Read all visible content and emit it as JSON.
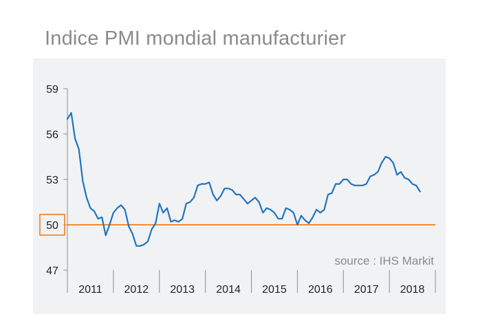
{
  "chart_data": {
    "type": "line",
    "title": "Indice PMI mondial manufacturier",
    "source": "source : IHS Markit",
    "xlabel": "",
    "ylabel": "",
    "ylim": [
      47,
      59
    ],
    "yticks": [
      {
        "value": 59,
        "label": "59"
      },
      {
        "value": 56,
        "label": "56"
      },
      {
        "value": 53,
        "label": "53"
      },
      {
        "value": 50,
        "label": "50"
      },
      {
        "value": 47,
        "label": "47"
      }
    ],
    "highlight_tick": "50",
    "reference_line": {
      "value": 50,
      "color": "#ee7d1f"
    },
    "years": [
      "2011",
      "2012",
      "2013",
      "2014",
      "2015",
      "2016",
      "2017",
      "2018"
    ],
    "x_start": 2011.0,
    "x_end": 2019.0,
    "series": [
      {
        "name": "Indice PMI mondial manufacturier",
        "color": "#1f74bd",
        "start": "2011-01",
        "values": [
          57.0,
          57.4,
          55.7,
          55.0,
          52.9,
          51.8,
          51.1,
          50.9,
          50.4,
          50.5,
          49.3,
          50.0,
          50.8,
          51.1,
          51.3,
          51.0,
          49.9,
          49.4,
          48.6,
          48.6,
          48.7,
          48.9,
          49.7,
          50.1,
          51.4,
          50.8,
          51.1,
          50.2,
          50.3,
          50.2,
          50.4,
          51.4,
          51.5,
          51.8,
          52.6,
          52.7,
          52.7,
          52.8,
          52.0,
          51.6,
          51.9,
          52.4,
          52.4,
          52.3,
          52.0,
          52.0,
          51.7,
          51.4,
          51.6,
          51.8,
          51.5,
          50.8,
          51.1,
          51.0,
          50.8,
          50.4,
          50.4,
          51.1,
          51.0,
          50.8,
          50.0,
          50.6,
          50.3,
          50.1,
          50.5,
          51.0,
          50.8,
          51.0,
          52.0,
          52.1,
          52.7,
          52.7,
          53.0,
          53.0,
          52.7,
          52.6,
          52.6,
          52.6,
          52.7,
          53.2,
          53.3,
          53.5,
          54.1,
          54.5,
          54.4,
          54.1,
          53.3,
          53.5,
          53.1,
          53.0,
          52.7,
          52.6,
          52.2
        ]
      }
    ]
  },
  "colors": {
    "panel_bg": "#f1f2f4",
    "axis": "#8c8c8c",
    "line": "#1f74bd",
    "reference": "#ee7d1f",
    "title": "#8a8a8a"
  }
}
